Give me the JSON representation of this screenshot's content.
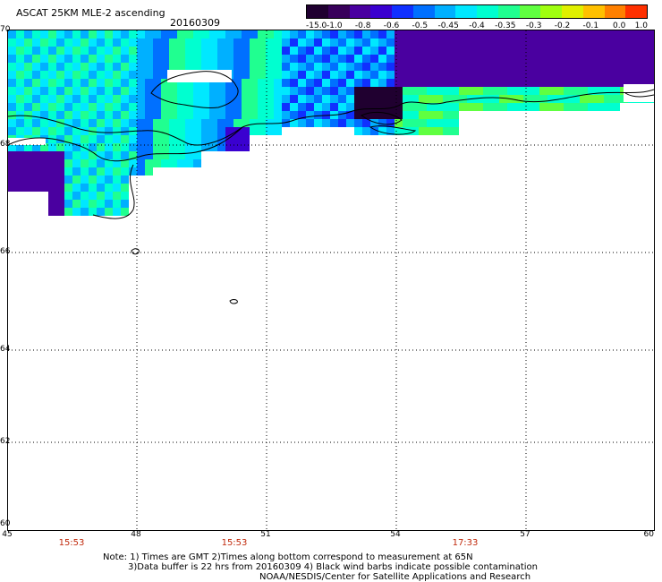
{
  "header": {
    "title": "ASCAT 25KM MLE-2 ascending",
    "date": "20160309"
  },
  "colorbar": {
    "labels": [
      "-15.0",
      "-1.0",
      "-0.8",
      "-0.6",
      "-0.5",
      "-0.45",
      "-0.4",
      "-0.35",
      "-0.3",
      "-0.2",
      "-0.1",
      "0.0",
      "1.0"
    ],
    "colors": [
      "#200030",
      "#38005a",
      "#4a00a0",
      "#3a00d0",
      "#1030ff",
      "#0070ff",
      "#00b0ff",
      "#00e8ff",
      "#00ffd0",
      "#20ff90",
      "#60ff40",
      "#a0ff10",
      "#e0f000",
      "#ffc000",
      "#ff8000",
      "#ff3000"
    ]
  },
  "map": {
    "lat_labels": [
      "70",
      "68",
      "66",
      "64",
      "62",
      "60"
    ],
    "lon_labels": [
      "45",
      "48",
      "51",
      "54",
      "57",
      "60"
    ],
    "lat_range": [
      60,
      70
    ],
    "lon_range": [
      45,
      60
    ],
    "times": [
      "15:53",
      "15:53",
      "17:33"
    ]
  },
  "notes": {
    "line1": "Note: 1) Times are GMT 2)Times along bottom correspond to measurement at 65N",
    "line2": "3)Data buffer is 22 hrs from 20160309 4) Black wind barbs indicate possible contamination",
    "line3": "NOAA/NESDIS/Center for Satellite Applications and Research"
  }
}
